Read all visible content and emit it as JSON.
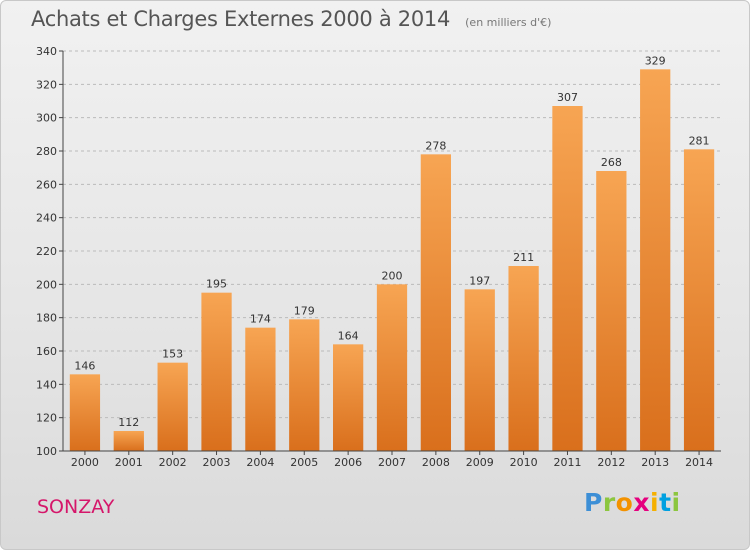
{
  "title": "Achats et Charges Externes 2000 à 2014",
  "subtitle": "(en milliers d'€)",
  "city": "SONZAY",
  "logo": {
    "letters": [
      "P",
      "r",
      "o",
      "x",
      "i",
      "t",
      "i"
    ],
    "colors": [
      "#3d8fd6",
      "#8cc63f",
      "#f39200",
      "#e5007e",
      "#f5b000",
      "#00a0e0",
      "#8cc63f"
    ]
  },
  "colors": {
    "bar_light": "#f7a553",
    "bar_dark": "#d96f1c",
    "grid": "#bbbbbb",
    "axis": "#444444"
  },
  "chart_data": {
    "type": "bar",
    "categories": [
      "2000",
      "2001",
      "2002",
      "2003",
      "2004",
      "2005",
      "2006",
      "2007",
      "2008",
      "2009",
      "2010",
      "2011",
      "2012",
      "2013",
      "2014"
    ],
    "values": [
      146,
      112,
      153,
      195,
      174,
      179,
      164,
      200,
      278,
      197,
      211,
      307,
      268,
      329,
      281
    ],
    "value_labels": [
      "146",
      "112",
      "153",
      "195",
      "174",
      "179",
      "164",
      "200",
      "278",
      "197",
      "211",
      "307",
      "268",
      "329",
      "281"
    ],
    "title": "Achats et Charges Externes 2000 à 2014",
    "xlabel": "",
    "ylabel": "",
    "ylim": [
      100,
      340
    ],
    "yticks": [
      100,
      120,
      140,
      160,
      180,
      200,
      220,
      240,
      260,
      280,
      300,
      320,
      340
    ],
    "ytick_labels": [
      "100",
      "120",
      "140",
      "160",
      "180",
      "200",
      "220",
      "240",
      "260",
      "280",
      "300",
      "320",
      "340"
    ],
    "grid": true,
    "legend": "none"
  }
}
